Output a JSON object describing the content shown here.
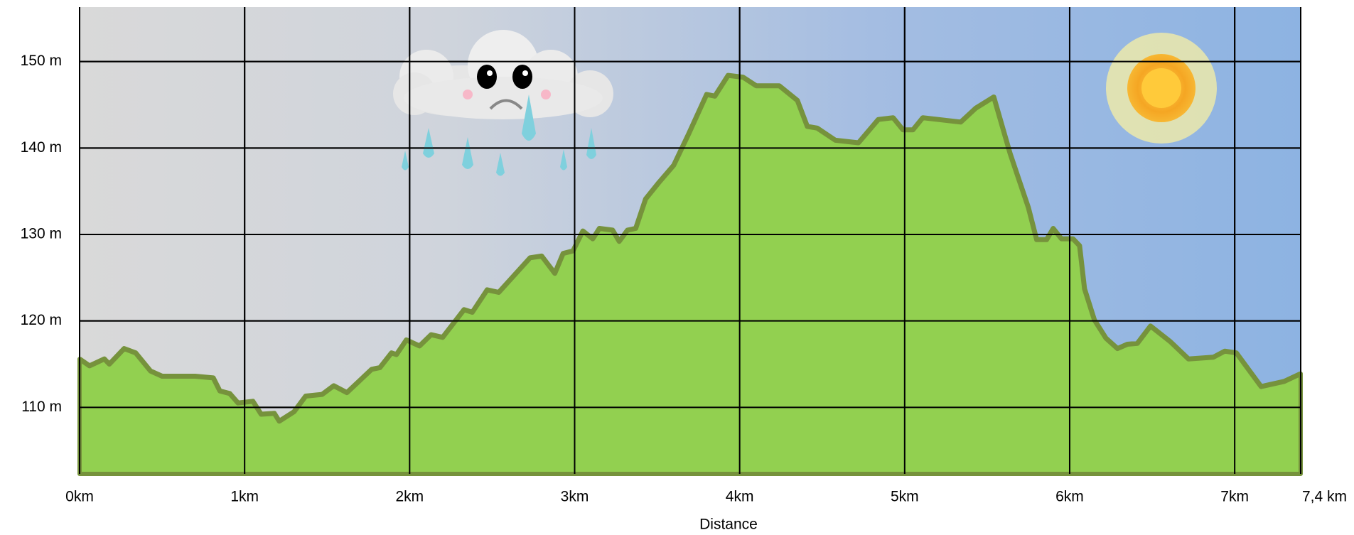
{
  "chart_data": {
    "type": "area",
    "x_label": "Distance",
    "x": [
      0,
      0.06,
      0.15,
      0.18,
      0.27,
      0.34,
      0.43,
      0.5,
      0.7,
      0.81,
      0.85,
      0.91,
      0.96,
      1.05,
      1.1,
      1.18,
      1.21,
      1.3,
      1.37,
      1.47,
      1.54,
      1.62,
      1.77,
      1.82,
      1.89,
      1.92,
      1.98,
      2.06,
      2.13,
      2.2,
      2.33,
      2.38,
      2.47,
      2.54,
      2.73,
      2.8,
      2.88,
      2.93,
      2.99,
      3.05,
      3.11,
      3.15,
      3.23,
      3.27,
      3.32,
      3.37,
      3.43,
      3.51,
      3.6,
      3.69,
      3.8,
      3.85,
      3.93,
      4.02,
      4.1,
      4.24,
      4.35,
      4.41,
      4.47,
      4.58,
      4.72,
      4.84,
      4.93,
      4.99,
      5.05,
      5.11,
      5.34,
      5.43,
      5.54,
      5.64,
      5.75,
      5.8,
      5.86,
      5.9,
      5.95,
      6.02,
      6.06,
      6.09,
      6.15,
      6.22,
      6.29,
      6.35,
      6.41,
      6.49,
      6.61,
      6.72,
      6.87,
      6.94,
      7.01,
      7.16,
      7.3,
      7.4
    ],
    "values": [
      115.6,
      114.8,
      115.6,
      115.0,
      116.8,
      116.3,
      114.2,
      113.6,
      113.6,
      113.4,
      111.9,
      111.6,
      110.5,
      110.7,
      109.2,
      109.3,
      108.4,
      109.5,
      111.3,
      111.5,
      112.5,
      111.7,
      114.4,
      114.6,
      116.3,
      116.1,
      117.8,
      117.1,
      118.4,
      118.1,
      121.3,
      121.0,
      123.6,
      123.3,
      127.3,
      127.5,
      125.5,
      127.8,
      128.1,
      130.4,
      129.5,
      130.7,
      130.5,
      129.2,
      130.5,
      130.7,
      134.1,
      136.0,
      138.0,
      141.6,
      146.2,
      146.0,
      148.4,
      148.2,
      147.2,
      147.2,
      145.5,
      142.5,
      142.3,
      140.9,
      140.6,
      143.3,
      143.5,
      142.1,
      142.1,
      143.5,
      143.0,
      144.6,
      145.9,
      139.3,
      133.1,
      129.4,
      129.4,
      130.7,
      129.5,
      129.5,
      128.7,
      123.7,
      120.1,
      118.0,
      116.8,
      117.3,
      117.4,
      119.4,
      117.6,
      115.6,
      115.8,
      116.5,
      116.3,
      112.4,
      113.0,
      113.9
    ],
    "color": "#92d050",
    "line_color": "#76923c",
    "xlim": [
      0,
      7.4
    ],
    "xticks": [
      {
        "value": 0,
        "label": "0km"
      },
      {
        "value": 1,
        "label": "1km"
      },
      {
        "value": 2,
        "label": "2km"
      },
      {
        "value": 3,
        "label": "3km"
      },
      {
        "value": 4,
        "label": "4km"
      },
      {
        "value": 5,
        "label": "5km"
      },
      {
        "value": 6,
        "label": "6km"
      },
      {
        "value": 7,
        "label": "7km"
      },
      {
        "value": 7.4,
        "label": "7,4 km"
      }
    ],
    "ylim": [
      102.3,
      156.3
    ],
    "yticks": [
      {
        "value": 110,
        "label": "110 m"
      },
      {
        "value": 120,
        "label": "120 m"
      },
      {
        "value": 130,
        "label": "130 m"
      },
      {
        "value": 140,
        "label": "140 m"
      },
      {
        "value": 150,
        "label": "150 m"
      }
    ],
    "grid": true
  }
}
